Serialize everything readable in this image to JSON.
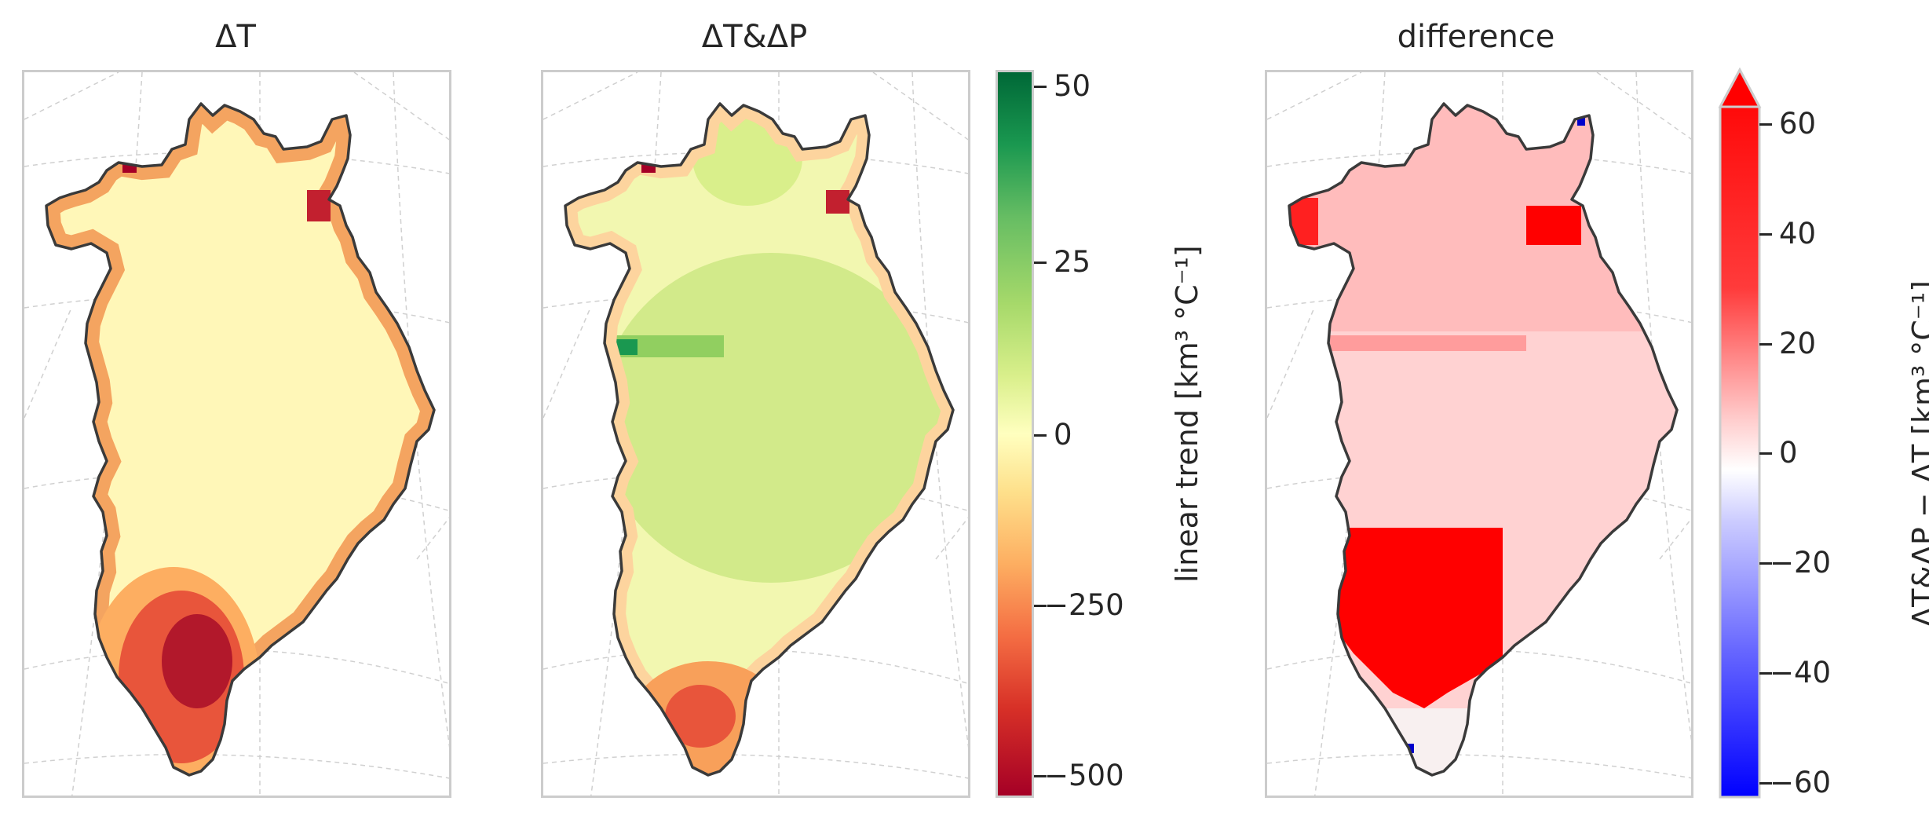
{
  "panels": [
    {
      "title": "ΔT"
    },
    {
      "title": "ΔT&ΔP"
    },
    {
      "title": "difference"
    }
  ],
  "colorbars": [
    {
      "label": "linear trend [km³ °C⁻¹]",
      "colormap": "RdYlGn",
      "ticks": [
        "50",
        "25",
        "0",
        "−250",
        "−500"
      ],
      "colors": {
        "top": "#006837",
        "mid_upper": "#a6d96a",
        "zero": "#ffffbf",
        "mid_lower": "#fdae61",
        "bottom": "#a50026"
      }
    },
    {
      "label": "ΔT&ΔP − ΔT [km³ °C⁻¹]",
      "colormap": "bwr",
      "extend": "max",
      "ticks": [
        "60",
        "40",
        "20",
        "0",
        "−20",
        "−40",
        "−60"
      ],
      "colors": {
        "top": "#ff0000",
        "zero": "#ffffff",
        "bottom": "#0000ff"
      }
    }
  ],
  "map_colors": {
    "coast": "#3a3a3a",
    "grid": "#d0d0d0"
  }
}
